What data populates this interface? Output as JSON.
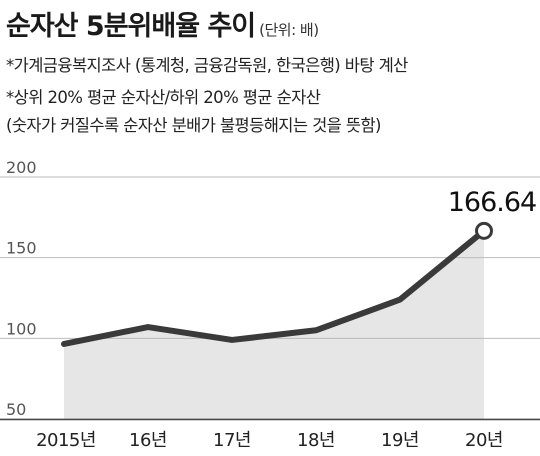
{
  "header": {
    "title": "순자산 5분위배율 추이",
    "unit": "(단위: 배)",
    "source": "*가계금융복지조사 (통계청, 금융감독원, 한국은행) 바탕 계산",
    "definition": "*상위 20% 평균 순자산/하위 20% 평균 순자산",
    "explanation": "(숫자가 커질수록 순자산 분배가 불평등해지는 것을 뜻함)"
  },
  "chart_data": {
    "type": "area",
    "categories": [
      "2015년",
      "16년",
      "17년",
      "18년",
      "19년",
      "20년"
    ],
    "values": [
      96.5,
      107,
      99,
      105,
      124,
      166.64
    ],
    "ylim": [
      50,
      200
    ],
    "yticks": [
      50,
      100,
      150,
      200
    ],
    "grid": true,
    "data_labels": [
      {
        "index": 5,
        "text": "166.64"
      }
    ],
    "colors": {
      "line": "#3a3a3a",
      "fill": "#e6e6e6",
      "grid": "#bbbbbb",
      "marker_fill": "#ffffff"
    }
  }
}
